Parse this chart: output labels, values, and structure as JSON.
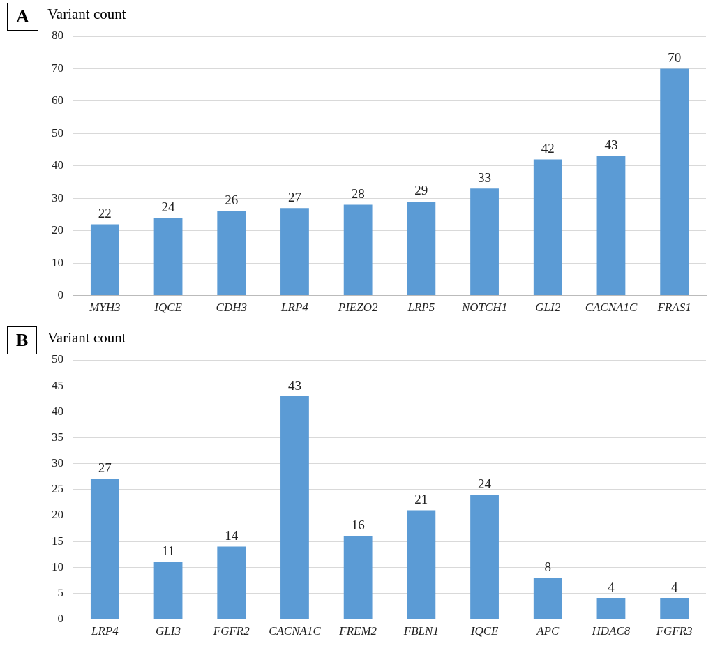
{
  "chart_data": [
    {
      "type": "bar",
      "title": "A",
      "ylabel": "Variant count",
      "categories": [
        "MYH3",
        "IQCE",
        "CDH3",
        "LRP4",
        "PIEZO2",
        "LRP5",
        "NOTCH1",
        "GLI2",
        "CACNA1C",
        "FRAS1"
      ],
      "values": [
        22,
        24,
        26,
        27,
        28,
        29,
        33,
        42,
        43,
        70
      ],
      "color": "#5b9bd5",
      "ylim": [
        0,
        80
      ],
      "yticks": [
        0,
        10,
        20,
        30,
        40,
        50,
        60,
        70,
        80
      ],
      "grid": "y",
      "data_labels": true
    },
    {
      "type": "bar",
      "title": "B",
      "ylabel": "Variant count",
      "categories": [
        "LRP4",
        "GLI3",
        "FGFR2",
        "CACNA1C",
        "FREM2",
        "FBLN1",
        "IQCE",
        "APC",
        "HDAC8",
        "FGFR3"
      ],
      "values": [
        27,
        11,
        14,
        43,
        16,
        21,
        24,
        8,
        4,
        4
      ],
      "color": "#5b9bd5",
      "ylim": [
        0,
        50
      ],
      "yticks": [
        0,
        5,
        10,
        15,
        20,
        25,
        30,
        35,
        40,
        45,
        50
      ],
      "grid": "y",
      "data_labels": true
    }
  ]
}
